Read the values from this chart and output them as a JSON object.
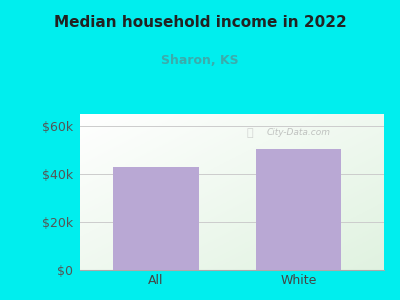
{
  "title": "Median household income in 2022",
  "subtitle": "Sharon, KS",
  "categories": [
    "All",
    "White"
  ],
  "values": [
    43000,
    50500
  ],
  "bar_color": "#b9a8d4",
  "title_color": "#222222",
  "subtitle_color": "#3aacac",
  "outer_bg_color": "#00eeee",
  "yticks": [
    0,
    20000,
    40000,
    60000
  ],
  "ytick_labels": [
    "$0",
    "$20k",
    "$40k",
    "$60k"
  ],
  "ylim": [
    0,
    65000
  ],
  "watermark": "City-Data.com"
}
